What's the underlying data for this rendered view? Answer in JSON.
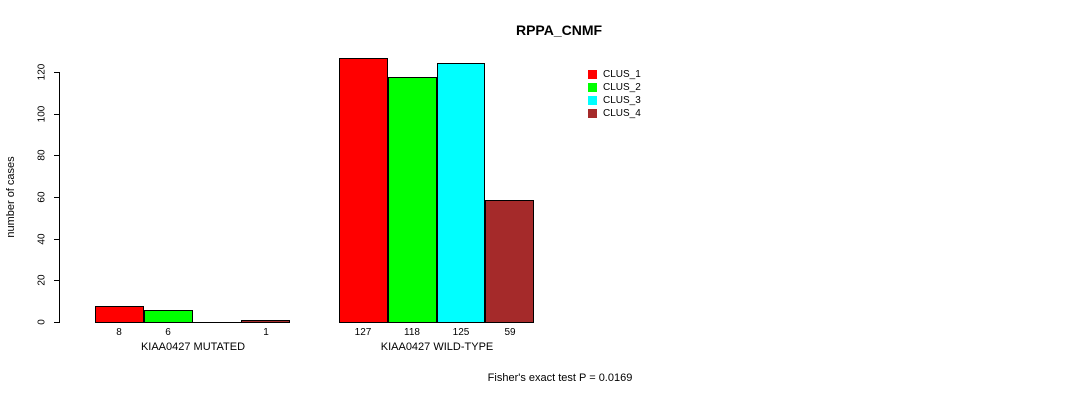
{
  "chart_data": {
    "type": "bar",
    "title": "RPPA_CNMF",
    "ylabel": "number of cases",
    "xlabel": "",
    "ylim": [
      0,
      120
    ],
    "yticks": [
      0,
      20,
      40,
      60,
      80,
      100,
      120
    ],
    "categories": [
      "KIAA0427 MUTATED",
      "KIAA0427 WILD-TYPE"
    ],
    "series": [
      {
        "name": "CLUS_1",
        "color": "#FF0000",
        "values": [
          8,
          127
        ]
      },
      {
        "name": "CLUS_2",
        "color": "#00FF00",
        "values": [
          6,
          118
        ]
      },
      {
        "name": "CLUS_3",
        "color": "#00FFFF",
        "values": [
          0,
          125
        ]
      },
      {
        "name": "CLUS_4",
        "color": "#A52A2A",
        "values": [
          1,
          59
        ]
      }
    ],
    "bar_value_labels": [
      [
        "8",
        "6",
        "",
        "1"
      ],
      [
        "127",
        "118",
        "125",
        "59"
      ]
    ],
    "legend_position": "top-right",
    "grid": false,
    "annotation": "Fisher's exact test P = 0.0169",
    "axis_color": "#000000",
    "background_color": "#ffffff"
  }
}
